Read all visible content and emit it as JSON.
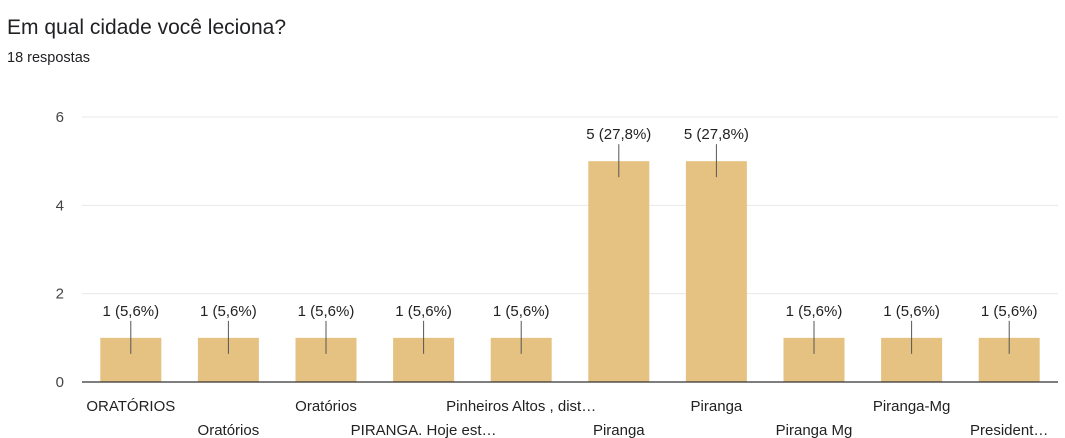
{
  "header": {
    "question": "Em qual cidade você leciona?",
    "responses": "18 respostas"
  },
  "colors": {
    "bar": "#E6C282",
    "grid": "#e8e8e8",
    "axis": "#333333"
  },
  "chart_data": {
    "type": "bar",
    "categories": [
      "ORATÓRIOS",
      "Oratórios",
      "Oratórios",
      "PIRANGA. Hoje est…",
      "Pinheiros Altos , dist…",
      "Piranga",
      "Piranga",
      "Piranga Mg",
      "Piranga-Mg",
      "President…"
    ],
    "values": [
      1,
      1,
      1,
      1,
      1,
      5,
      5,
      1,
      1,
      1
    ],
    "data_labels": [
      "1 (5,6%)",
      "1 (5,6%)",
      "1 (5,6%)",
      "1 (5,6%)",
      "1 (5,6%)",
      "5 (27,8%)",
      "5 (27,8%)",
      "1 (5,6%)",
      "1 (5,6%)",
      "1 (5,6%)"
    ],
    "ylim": [
      0,
      6
    ],
    "yticks": [
      0,
      2,
      4,
      6
    ],
    "grid": true
  }
}
